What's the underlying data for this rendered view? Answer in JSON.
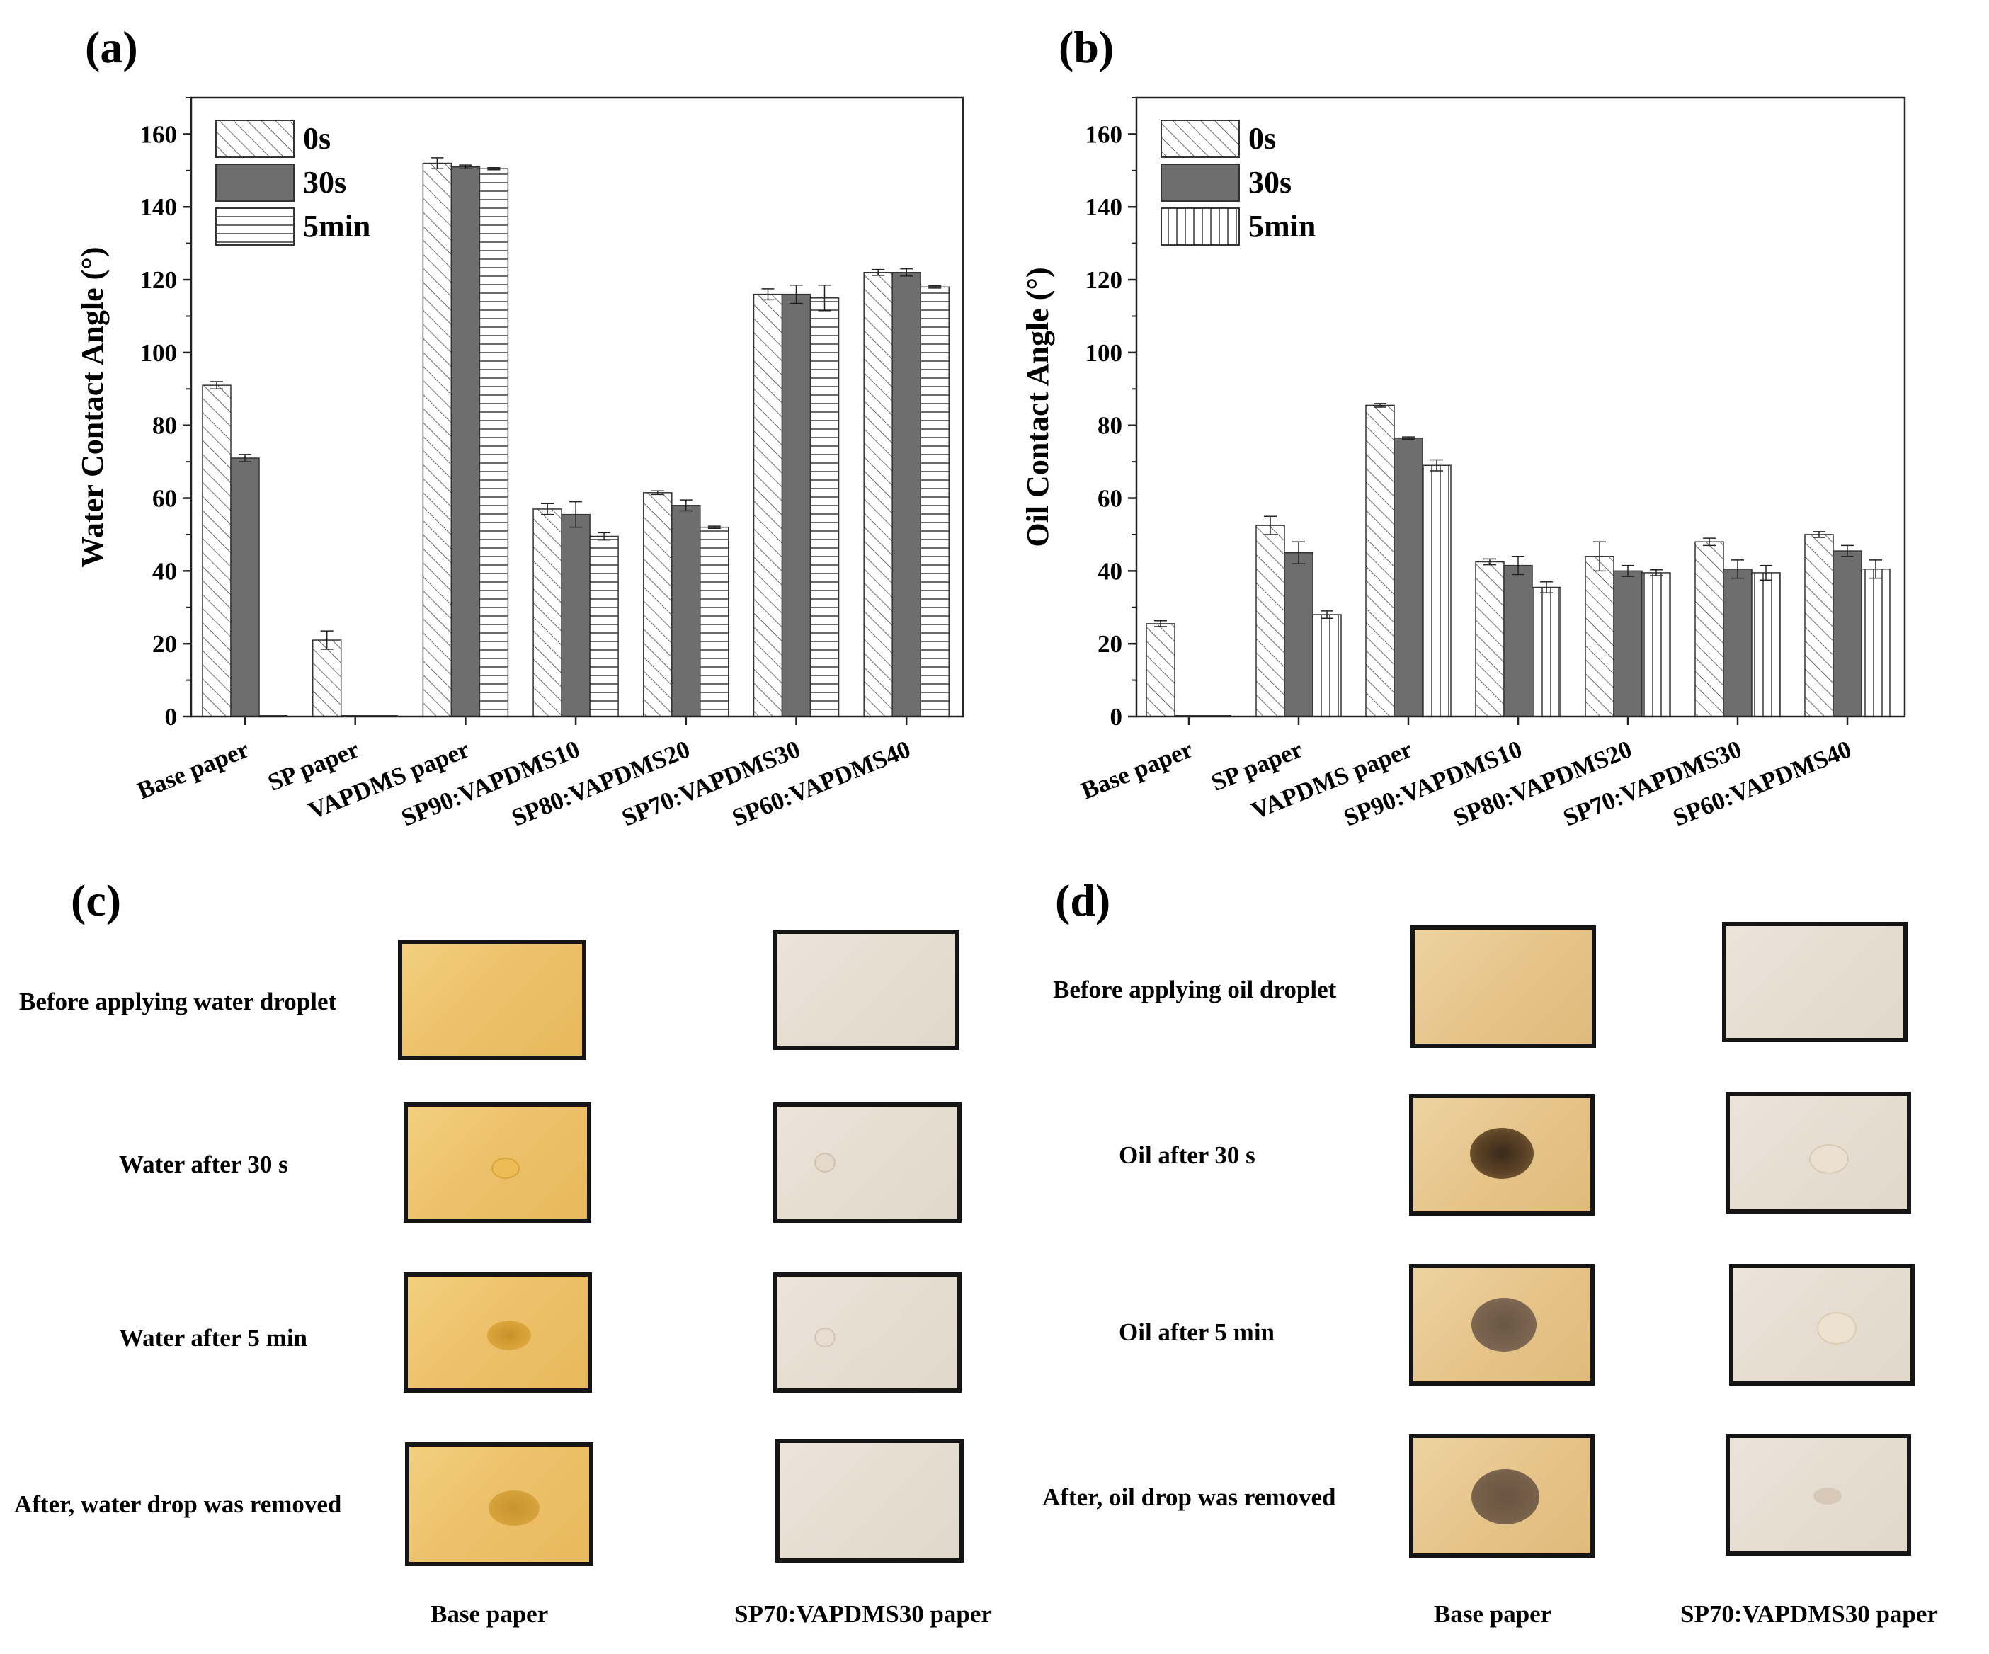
{
  "panels": {
    "a": "(a)",
    "b": "(b)",
    "c": "(c)",
    "d": "(d)"
  },
  "chart_data": [
    {
      "id": "a",
      "type": "bar",
      "ylabel": "Water Contact Angle (°)",
      "ylim": [
        0,
        170
      ],
      "yticks": [
        0,
        20,
        40,
        60,
        80,
        100,
        120,
        140,
        160
      ],
      "categories": [
        "Base paper",
        "SP paper",
        "VAPDMS paper",
        "SP90:VAPDMS10",
        "SP80:VAPDMS20",
        "SP70:VAPDMS30",
        "SP60:VAPDMS40"
      ],
      "legend_position": "top-left",
      "series": [
        {
          "name": "0s",
          "pattern": "diagonal",
          "values": [
            91,
            21,
            152,
            57,
            61.5,
            116,
            122
          ],
          "errors": [
            1,
            2.5,
            1.5,
            1.5,
            0.5,
            1.5,
            0.8
          ]
        },
        {
          "name": "30s",
          "pattern": "gray",
          "values": [
            71,
            0,
            151,
            55.5,
            58,
            116,
            122
          ],
          "errors": [
            1,
            0,
            0.5,
            3.5,
            1.5,
            2.5,
            1
          ]
        },
        {
          "name": "5min",
          "pattern": "horizontal",
          "values": [
            0,
            0,
            150.5,
            49.5,
            52,
            115,
            118
          ],
          "errors": [
            0,
            0,
            0.3,
            1,
            0.3,
            3.5,
            0.3
          ]
        }
      ]
    },
    {
      "id": "b",
      "type": "bar",
      "ylabel": "Oil Contact Angle (°)",
      "ylim": [
        0,
        170
      ],
      "yticks": [
        0,
        20,
        40,
        60,
        80,
        100,
        120,
        140,
        160
      ],
      "categories": [
        "Base paper",
        "SP paper",
        "VAPDMS paper",
        "SP90:VAPDMS10",
        "SP80:VAPDMS20",
        "SP70:VAPDMS30",
        "SP60:VAPDMS40"
      ],
      "legend_position": "top-left",
      "series": [
        {
          "name": "0s",
          "pattern": "diagonal",
          "values": [
            25.5,
            52.5,
            85.5,
            42.5,
            44,
            48,
            50
          ],
          "errors": [
            0.8,
            2.5,
            0.5,
            0.8,
            4,
            1,
            0.8
          ]
        },
        {
          "name": "30s",
          "pattern": "gray",
          "values": [
            0,
            45,
            76.5,
            41.5,
            40,
            40.5,
            45.5
          ],
          "errors": [
            0,
            3,
            0.3,
            2.5,
            1.5,
            2.5,
            1.5
          ]
        },
        {
          "name": "5min",
          "pattern": "vertical",
          "values": [
            0,
            28,
            69,
            35.5,
            39.5,
            39.5,
            40.5
          ],
          "errors": [
            0,
            1,
            1.5,
            1.5,
            0.8,
            2,
            2.5
          ]
        }
      ]
    }
  ],
  "panel_c": {
    "rows": [
      "Before applying water droplet",
      "Water after 30 s",
      "Water after 5 min",
      "After, water drop was removed"
    ],
    "columns": [
      "Base paper",
      "SP70:VAPDMS30 paper"
    ]
  },
  "panel_d": {
    "rows": [
      "Before applying oil droplet",
      "Oil after 30 s",
      "Oil after 5 min",
      "After, oil drop was removed"
    ],
    "columns": [
      "Base paper",
      "SP70:VAPDMS30 paper"
    ]
  }
}
